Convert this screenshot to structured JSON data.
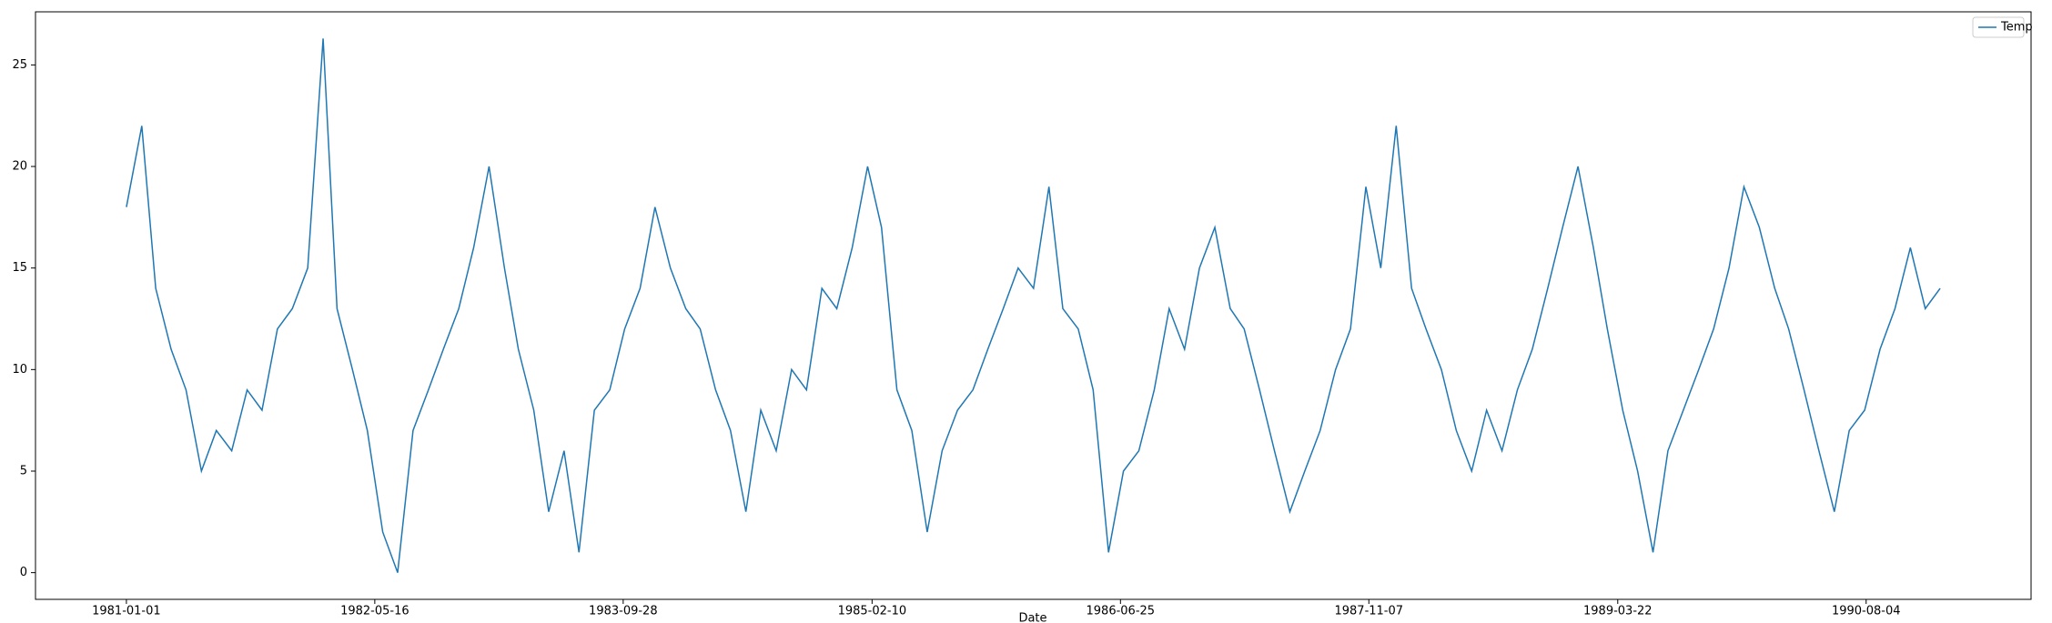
{
  "chart_data": {
    "type": "line",
    "x_label": "Date",
    "x": [
      "1981-01-01",
      "1981-02-01",
      "1981-03-01",
      "1981-04-01",
      "1981-05-01",
      "1981-06-01",
      "1981-07-01",
      "1981-08-01",
      "1981-09-01",
      "1981-10-01",
      "1981-11-01",
      "1981-12-01",
      "1982-01-01",
      "1982-02-01",
      "1982-03-01",
      "1982-04-01",
      "1982-05-01",
      "1982-06-01",
      "1982-07-01",
      "1982-08-01",
      "1982-09-01",
      "1982-10-01",
      "1982-11-01",
      "1982-12-01",
      "1983-01-01",
      "1983-02-01",
      "1983-03-01",
      "1983-04-01",
      "1983-05-01",
      "1983-06-01",
      "1983-07-01",
      "1983-08-01",
      "1983-09-01",
      "1983-10-01",
      "1983-11-01",
      "1983-12-01",
      "1984-01-01",
      "1984-02-01",
      "1984-03-01",
      "1984-04-01",
      "1984-05-01",
      "1984-06-01",
      "1984-07-01",
      "1984-08-01",
      "1984-09-01",
      "1984-10-01",
      "1984-11-01",
      "1984-12-01",
      "1985-01-01",
      "1985-02-01",
      "1985-03-01",
      "1985-04-01",
      "1985-05-01",
      "1985-06-01",
      "1985-07-01",
      "1985-08-01",
      "1985-09-01",
      "1985-10-01",
      "1985-11-01",
      "1985-12-01",
      "1986-01-01",
      "1986-02-01",
      "1986-03-01",
      "1986-04-01",
      "1986-05-01",
      "1986-06-01",
      "1986-07-01",
      "1986-08-01",
      "1986-09-01",
      "1986-10-01",
      "1986-11-01",
      "1986-12-01",
      "1987-01-01",
      "1987-02-01",
      "1987-03-01",
      "1987-04-01",
      "1987-05-01",
      "1987-06-01",
      "1987-07-01",
      "1987-08-01",
      "1987-09-01",
      "1987-10-01",
      "1987-11-01",
      "1987-12-01",
      "1988-01-01",
      "1988-02-01",
      "1988-03-01",
      "1988-04-01",
      "1988-05-01",
      "1988-06-01",
      "1988-07-01",
      "1988-08-01",
      "1988-09-01",
      "1988-10-01",
      "1988-11-01",
      "1988-12-01",
      "1989-01-01",
      "1989-02-01",
      "1989-03-01",
      "1989-04-01",
      "1989-05-01",
      "1989-06-01",
      "1989-07-01",
      "1989-08-01",
      "1989-09-01",
      "1989-10-01",
      "1989-11-01",
      "1989-12-01",
      "1990-01-01",
      "1990-02-01",
      "1990-03-01",
      "1990-04-01",
      "1990-05-01",
      "1990-06-01",
      "1990-07-01",
      "1990-08-01",
      "1990-09-01",
      "1990-10-01",
      "1990-11-01",
      "1990-12-01",
      "1990-12-31"
    ],
    "series": [
      {
        "name": "Temp",
        "color": "#1f77b4",
        "values": [
          18,
          22,
          14,
          11,
          9,
          5,
          7,
          6,
          9,
          8,
          12,
          13,
          15,
          26.3,
          13,
          10,
          7,
          2,
          0,
          7,
          9,
          11,
          13,
          16,
          20,
          15,
          11,
          8,
          3,
          6,
          1,
          8,
          9,
          12,
          14,
          18,
          15,
          13,
          12,
          9,
          7,
          3,
          8,
          6,
          10,
          9,
          14,
          13,
          16,
          20,
          17,
          9,
          7,
          2,
          6,
          8,
          9,
          11,
          13,
          15,
          14,
          19,
          13,
          12,
          9,
          1,
          5,
          6,
          9,
          13,
          11,
          15,
          17,
          13,
          12,
          9,
          6,
          3,
          5,
          7,
          10,
          12,
          19,
          15,
          22,
          14,
          12,
          10,
          7,
          5,
          8,
          6,
          9,
          11,
          14,
          17,
          20,
          16,
          12,
          8,
          5,
          1,
          6,
          8,
          10,
          12,
          15,
          19,
          17,
          14,
          12,
          9,
          6,
          3,
          7,
          8,
          11,
          13,
          16,
          13,
          14
        ]
      }
    ],
    "xlim": [
      "1980-07-02",
      "1991-07-02"
    ],
    "xticks": [
      "1981-01-01",
      "1982-05-16",
      "1983-09-28",
      "1985-02-10",
      "1986-06-25",
      "1987-11-07",
      "1989-03-22",
      "1990-08-04"
    ],
    "ylim": [
      -1.315,
      27.615
    ],
    "yticks": [
      0,
      5,
      10,
      15,
      20,
      25
    ],
    "legend_loc": "upper right"
  }
}
